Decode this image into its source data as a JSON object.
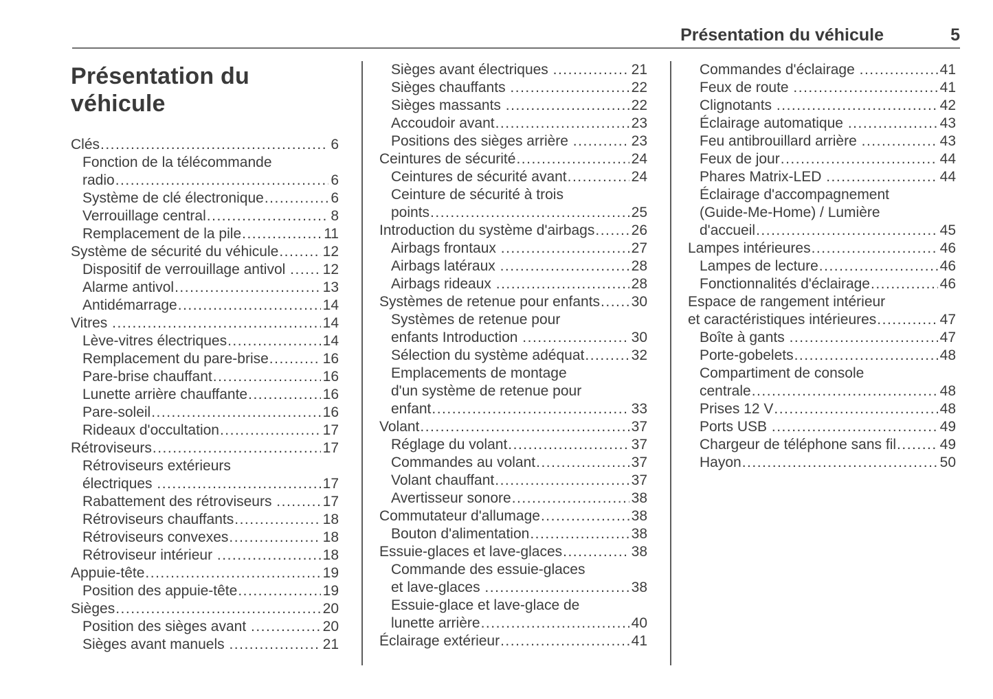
{
  "page": {
    "header": {
      "title": "Présentation du véhicule",
      "page_number": "5"
    },
    "title": "Présentation du véhicule"
  },
  "colors": {
    "background": "#ffffff",
    "text": "#3c3c3c",
    "rule": "#717171"
  },
  "toc": {
    "columns": [
      {
        "entries": [
          {
            "level": 1,
            "lines": [
              "Clés"
            ],
            "page": "6"
          },
          {
            "level": 2,
            "lines": [
              "Fonction de la télécommande",
              "radio"
            ],
            "page": "6"
          },
          {
            "level": 2,
            "lines": [
              "Système de clé électronique"
            ],
            "page": "6"
          },
          {
            "level": 2,
            "lines": [
              "Verrouillage central"
            ],
            "page": "8"
          },
          {
            "level": 2,
            "lines": [
              "Remplacement de la pile"
            ],
            "page": "11"
          },
          {
            "level": 1,
            "lines": [
              "Système de sécurité du véhicule"
            ],
            "page": "12"
          },
          {
            "level": 2,
            "lines": [
              "Dispositif de verrouillage antivol "
            ],
            "page": "12"
          },
          {
            "level": 2,
            "lines": [
              "Alarme antivol"
            ],
            "page": "13"
          },
          {
            "level": 2,
            "lines": [
              "Antidémarrage"
            ],
            "page": "14"
          },
          {
            "level": 1,
            "lines": [
              "Vitres "
            ],
            "page": "14"
          },
          {
            "level": 2,
            "lines": [
              "Lève-vitres électriques"
            ],
            "page": "14"
          },
          {
            "level": 2,
            "lines": [
              "Remplacement du pare-brise"
            ],
            "page": "16"
          },
          {
            "level": 2,
            "lines": [
              "Pare-brise chauffant"
            ],
            "page": "16"
          },
          {
            "level": 2,
            "lines": [
              "Lunette arrière chauffante"
            ],
            "page": "16"
          },
          {
            "level": 2,
            "lines": [
              "Pare-soleil"
            ],
            "page": "16"
          },
          {
            "level": 2,
            "lines": [
              "Rideaux d'occultation"
            ],
            "page": "17"
          },
          {
            "level": 1,
            "lines": [
              "Rétroviseurs"
            ],
            "page": "17"
          },
          {
            "level": 2,
            "lines": [
              "Rétroviseurs extérieurs",
              "électriques "
            ],
            "page": "17"
          },
          {
            "level": 2,
            "lines": [
              "Rabattement des rétroviseurs "
            ],
            "page": "17"
          },
          {
            "level": 2,
            "lines": [
              "Rétroviseurs chauffants"
            ],
            "page": "18"
          },
          {
            "level": 2,
            "lines": [
              "Rétroviseurs convexes"
            ],
            "page": "18"
          },
          {
            "level": 2,
            "lines": [
              "Rétroviseur intérieur "
            ],
            "page": "18"
          },
          {
            "level": 1,
            "lines": [
              "Appuie-tête"
            ],
            "page": "19"
          },
          {
            "level": 2,
            "lines": [
              "Position des appuie-tête"
            ],
            "page": "19"
          },
          {
            "level": 1,
            "lines": [
              "Sièges"
            ],
            "page": "20"
          },
          {
            "level": 2,
            "lines": [
              "Position des sièges avant "
            ],
            "page": "20"
          },
          {
            "level": 2,
            "lines": [
              "Sièges avant manuels "
            ],
            "page": "21"
          }
        ]
      },
      {
        "entries": [
          {
            "level": 2,
            "lines": [
              "Sièges avant électriques "
            ],
            "page": "21"
          },
          {
            "level": 2,
            "lines": [
              "Sièges chauffants "
            ],
            "page": "22"
          },
          {
            "level": 2,
            "lines": [
              "Sièges massants "
            ],
            "page": "22"
          },
          {
            "level": 2,
            "lines": [
              "Accoudoir avant"
            ],
            "page": "23"
          },
          {
            "level": 2,
            "lines": [
              "Positions des sièges arrière "
            ],
            "page": "23"
          },
          {
            "level": 1,
            "lines": [
              "Ceintures de sécurité"
            ],
            "page": "24"
          },
          {
            "level": 2,
            "lines": [
              "Ceintures de sécurité avant"
            ],
            "page": "24"
          },
          {
            "level": 2,
            "lines": [
              "Ceinture de sécurité à trois",
              "points"
            ],
            "page": "25"
          },
          {
            "level": 1,
            "lines": [
              "Introduction du système d'airbags"
            ],
            "page": "26"
          },
          {
            "level": 2,
            "lines": [
              "Airbags frontaux "
            ],
            "page": "27"
          },
          {
            "level": 2,
            "lines": [
              "Airbags latéraux "
            ],
            "page": "28"
          },
          {
            "level": 2,
            "lines": [
              "Airbags rideaux "
            ],
            "page": "28"
          },
          {
            "level": 1,
            "lines": [
              "Systèmes de retenue pour enfants"
            ],
            "page": "30"
          },
          {
            "level": 2,
            "lines": [
              "Systèmes de retenue pour",
              "enfants Introduction "
            ],
            "page": "30"
          },
          {
            "level": 2,
            "lines": [
              "Sélection du système adéquat"
            ],
            "page": "32"
          },
          {
            "level": 2,
            "lines": [
              "Emplacements de montage",
              "d'un système de retenue pour",
              "enfant"
            ],
            "page": "33"
          },
          {
            "level": 1,
            "lines": [
              "Volant"
            ],
            "page": "37"
          },
          {
            "level": 2,
            "lines": [
              "Réglage du volant"
            ],
            "page": "37"
          },
          {
            "level": 2,
            "lines": [
              "Commandes au volant"
            ],
            "page": "37"
          },
          {
            "level": 2,
            "lines": [
              "Volant chauffant"
            ],
            "page": "37"
          },
          {
            "level": 2,
            "lines": [
              "Avertisseur sonore"
            ],
            "page": "38"
          },
          {
            "level": 1,
            "lines": [
              "Commutateur d'allumage"
            ],
            "page": "38"
          },
          {
            "level": 2,
            "lines": [
              "Bouton d'alimentation"
            ],
            "page": "38"
          },
          {
            "level": 1,
            "lines": [
              "Essuie-glaces et lave-glaces"
            ],
            "page": "38"
          },
          {
            "level": 2,
            "lines": [
              "Commande des essuie-glaces",
              "et lave-glaces "
            ],
            "page": "38"
          },
          {
            "level": 2,
            "lines": [
              "Essuie-glace et lave-glace de",
              "lunette arrière"
            ],
            "page": "40"
          },
          {
            "level": 1,
            "lines": [
              "Éclairage extérieur"
            ],
            "page": "41"
          }
        ]
      },
      {
        "entries": [
          {
            "level": 2,
            "lines": [
              "Commandes d'éclairage "
            ],
            "page": "41"
          },
          {
            "level": 2,
            "lines": [
              "Feux de route "
            ],
            "page": "41"
          },
          {
            "level": 2,
            "lines": [
              "Clignotants "
            ],
            "page": "42"
          },
          {
            "level": 2,
            "lines": [
              "Éclairage automatique "
            ],
            "page": "43"
          },
          {
            "level": 2,
            "lines": [
              "Feu antibrouillard arrière "
            ],
            "page": "43"
          },
          {
            "level": 2,
            "lines": [
              "Feux de jour"
            ],
            "page": "44"
          },
          {
            "level": 2,
            "lines": [
              "Phares Matrix-LED "
            ],
            "page": "44"
          },
          {
            "level": 2,
            "lines": [
              "Éclairage d'accompagnement",
              "(Guide-Me-Home) / Lumière",
              "d'accueil"
            ],
            "page": "45"
          },
          {
            "level": 1,
            "lines": [
              "Lampes intérieures"
            ],
            "page": "46"
          },
          {
            "level": 2,
            "lines": [
              "Lampes de lecture"
            ],
            "page": "46"
          },
          {
            "level": 2,
            "lines": [
              "Fonctionnalités d'éclairage"
            ],
            "page": "46"
          },
          {
            "level": 1,
            "lines": [
              "Espace de rangement intérieur",
              "et caractéristiques intérieures"
            ],
            "page": "47"
          },
          {
            "level": 2,
            "lines": [
              "Boîte à gants "
            ],
            "page": "47"
          },
          {
            "level": 2,
            "lines": [
              "Porte-gobelets"
            ],
            "page": "48"
          },
          {
            "level": 2,
            "lines": [
              "Compartiment de console",
              "centrale"
            ],
            "page": "48"
          },
          {
            "level": 2,
            "lines": [
              "Prises 12 V"
            ],
            "page": "48"
          },
          {
            "level": 2,
            "lines": [
              "Ports USB "
            ],
            "page": "49"
          },
          {
            "level": 2,
            "lines": [
              "Chargeur de téléphone sans fil"
            ],
            "page": "49"
          },
          {
            "level": 2,
            "lines": [
              "Hayon"
            ],
            "page": "50"
          }
        ]
      }
    ]
  }
}
